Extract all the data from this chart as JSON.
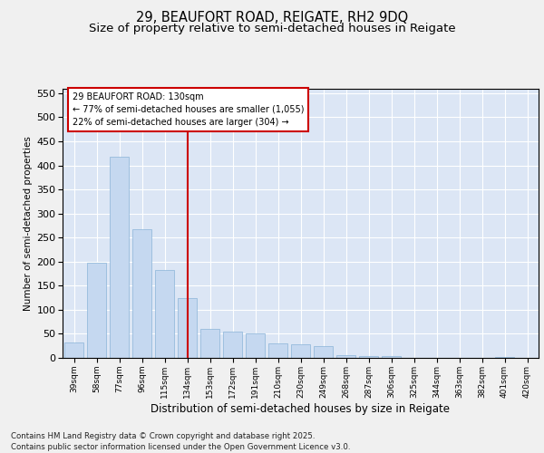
{
  "title1": "29, BEAUFORT ROAD, REIGATE, RH2 9DQ",
  "title2": "Size of property relative to semi-detached houses in Reigate",
  "xlabel": "Distribution of semi-detached houses by size in Reigate",
  "ylabel": "Number of semi-detached properties",
  "categories": [
    "39sqm",
    "58sqm",
    "77sqm",
    "96sqm",
    "115sqm",
    "134sqm",
    "153sqm",
    "172sqm",
    "191sqm",
    "210sqm",
    "230sqm",
    "249sqm",
    "268sqm",
    "287sqm",
    "306sqm",
    "325sqm",
    "344sqm",
    "363sqm",
    "382sqm",
    "401sqm",
    "420sqm"
  ],
  "values": [
    32,
    197,
    418,
    268,
    182,
    125,
    60,
    55,
    50,
    30,
    28,
    25,
    5,
    3,
    3,
    0,
    0,
    0,
    0,
    2,
    0
  ],
  "bar_color": "#c5d8f0",
  "bar_edge_color": "#8ab4d8",
  "vline_index": 5,
  "vline_color": "#cc0000",
  "annotation_text1": "29 BEAUFORT ROAD: 130sqm",
  "annotation_text2": "← 77% of semi-detached houses are smaller (1,055)",
  "annotation_text3": "22% of semi-detached houses are larger (304) →",
  "ylim": [
    0,
    560
  ],
  "yticks": [
    0,
    50,
    100,
    150,
    200,
    250,
    300,
    350,
    400,
    450,
    500,
    550
  ],
  "footer1": "Contains HM Land Registry data © Crown copyright and database right 2025.",
  "footer2": "Contains public sector information licensed under the Open Government Licence v3.0.",
  "fig_bg_color": "#f0f0f0",
  "axes_bg_color": "#dce6f5",
  "title_fontsize": 10.5,
  "subtitle_fontsize": 9.5
}
